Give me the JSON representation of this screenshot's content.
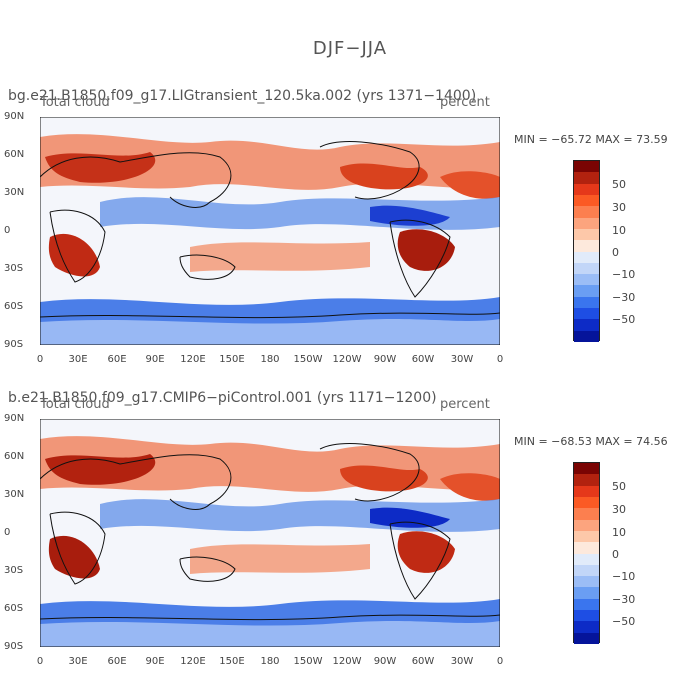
{
  "figure": {
    "title": "DJF−JJA"
  },
  "panels": [
    {
      "run_title": "bg.e21.B1850.f09_g17.LIGtransient_120.5ka.002 (yrs 1371−1400)",
      "variable": "Total cloud",
      "units": "percent",
      "stats": "MIN = −65.72 MAX =  73.59"
    },
    {
      "run_title": "b.e21.B1850.f09_g17.CMIP6−piControl.001 (yrs 1171−1200)",
      "variable": "Total cloud",
      "units": "percent",
      "stats": "MIN = −68.53 MAX =  74.56"
    }
  ],
  "axes": {
    "lat_ticks": [
      "90N",
      "60N",
      "30N",
      "0",
      "30S",
      "60S",
      "90S"
    ],
    "lon_ticks": [
      "0",
      "30E",
      "60E",
      "90E",
      "120E",
      "150E",
      "180",
      "150W",
      "120W",
      "90W",
      "60W",
      "30W",
      "0"
    ]
  },
  "colorbar": {
    "labels": [
      "50",
      "30",
      "10",
      "0",
      "−10",
      "−30",
      "−50"
    ],
    "colors": [
      "#7a0403",
      "#b2220f",
      "#e5381a",
      "#fb5a24",
      "#fc7f4f",
      "#fca47e",
      "#fdc8a9",
      "#fde9dc",
      "#e1ebfa",
      "#c2d6f8",
      "#9bbdf6",
      "#6a9ef3",
      "#3a75ee",
      "#1e4ee4",
      "#0d2bc6",
      "#05149a"
    ]
  }
}
